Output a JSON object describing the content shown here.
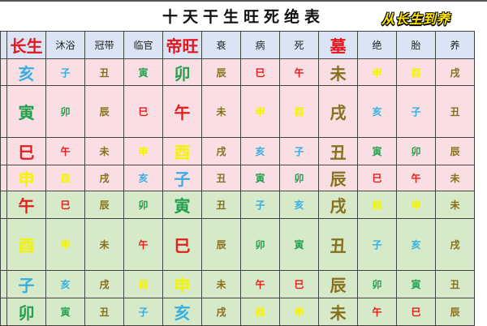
{
  "title": "十天干生旺死绝表",
  "headers": [
    "长生",
    "沐浴",
    "冠带",
    "临官",
    "帝旺",
    "衰",
    "病",
    "死",
    "墓",
    "绝",
    "胎",
    "养"
  ],
  "emphasized_headers": [
    "长生",
    "帝旺",
    "墓"
  ],
  "rows": [
    {
      "group": "pink",
      "cells": [
        "亥",
        "子",
        "丑",
        "寅",
        "卯",
        "辰",
        "巳",
        "午",
        "未",
        "申",
        "酉",
        "戌"
      ]
    },
    {
      "group": "pink",
      "cells": [
        "寅",
        "卯",
        "辰",
        "巳",
        "午",
        "未",
        "申",
        "酉",
        "戌",
        "亥",
        "子",
        "丑"
      ]
    },
    {
      "group": "pink",
      "cells": [
        "巳",
        "午",
        "未",
        "申",
        "酉",
        "戌",
        "亥",
        "子",
        "丑",
        "寅",
        "卯",
        "辰"
      ]
    },
    {
      "group": "pink",
      "cells": [
        "申",
        "酉",
        "戌",
        "亥",
        "子",
        "丑",
        "寅",
        "卯",
        "辰",
        "巳",
        "午",
        "未"
      ]
    },
    {
      "group": "green",
      "cells": [
        "午",
        "巳",
        "辰",
        "卯",
        "寅",
        "丑",
        "子",
        "亥",
        "戌",
        "酉",
        "申",
        "未"
      ]
    },
    {
      "group": "green",
      "cells": [
        "酉",
        "申",
        "未",
        "午",
        "巳",
        "辰",
        "卯",
        "寅",
        "丑",
        "子",
        "亥",
        "戌"
      ]
    },
    {
      "group": "green",
      "cells": [
        "子",
        "亥",
        "戌",
        "酉",
        "申",
        "未",
        "午",
        "巳",
        "辰",
        "卯",
        "寅",
        "丑"
      ]
    },
    {
      "group": "green",
      "cells": [
        "卯",
        "寅",
        "丑",
        "子",
        "亥",
        "戌",
        "酉",
        "申",
        "未",
        "午",
        "巳",
        "辰"
      ]
    }
  ],
  "branch_colors": {
    "子": "#35aee0",
    "亥": "#35aee0",
    "寅": "#22a04e",
    "卯": "#22a04e",
    "巳": "#e81c1c",
    "午": "#e81c1c",
    "申": "#f4f400",
    "酉": "#f4f400",
    "辰": "#86701c",
    "戌": "#86701c",
    "丑": "#86701c",
    "未": "#86701c"
  },
  "row_colors": {
    "pink": "#f9dfe3",
    "green": "#d6e9c9",
    "header": "#dbe4f4"
  },
  "caption": "从长生到养"
}
